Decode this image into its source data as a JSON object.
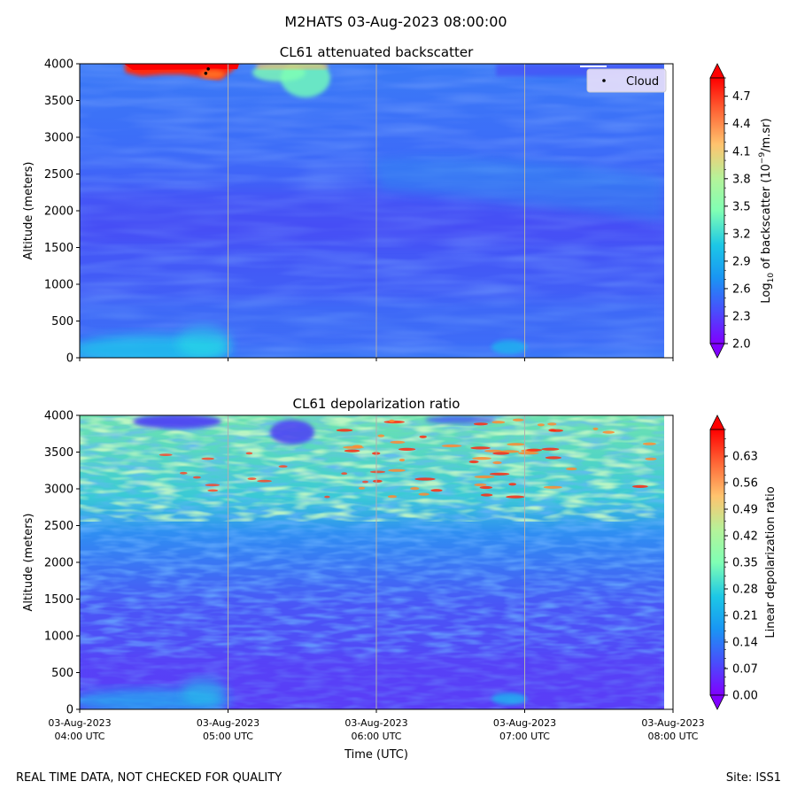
{
  "figure": {
    "title": "M2HATS 03-Aug-2023 08:00:00",
    "footer_left": "REAL TIME DATA, NOT CHECKED FOR QUALITY",
    "footer_right": "Site: ISS1"
  },
  "chart_data": [
    {
      "type": "heatmap",
      "title": "CL61 attenuated backscatter",
      "ylabel": "Altitude (meters)",
      "xlabel": "",
      "ylim": [
        0,
        4000
      ],
      "yticks": [
        "0",
        "500",
        "1000",
        "1500",
        "2000",
        "2500",
        "3000",
        "3500",
        "4000"
      ],
      "x_range": [
        "03-Aug-2023 04:00 UTC",
        "03-Aug-2023 08:00 UTC"
      ],
      "vertical_gridlines": true,
      "legend": {
        "placement": "top-right",
        "entries": [
          "Cloud"
        ]
      },
      "colorbar": {
        "label_prefix": "Log",
        "label_sub": "10",
        "label_mid": " of backscatter (10",
        "label_sup": "−9",
        "label_suffix": "/m.sr)",
        "ticks": [
          "2.0",
          "2.3",
          "2.6",
          "2.9",
          "3.2",
          "3.5",
          "3.8",
          "4.1",
          "4.4",
          "4.7"
        ],
        "range": [
          2.0,
          4.9
        ],
        "colormap": "rainbow",
        "extend": "both"
      },
      "cloud_points": [
        {
          "time": "04:51",
          "altitude": 3870
        },
        {
          "time": "04:52",
          "altitude": 3930
        }
      ],
      "features": [
        {
          "description": "strong backscatter (red)",
          "time_start": "04:30",
          "time_end": "05:30",
          "altitude_min": 3700,
          "altitude_max": 4000
        },
        {
          "description": "elevated backscatter (green)",
          "time_start": "05:15",
          "time_end": "05:45",
          "altitude_min": 3550,
          "altitude_max": 4000
        },
        {
          "description": "near-surface layer (light blue)",
          "time_start": "04:00",
          "time_end": "05:05",
          "altitude_min": 0,
          "altitude_max": 250
        }
      ]
    },
    {
      "type": "heatmap",
      "title": "CL61 depolarization ratio",
      "ylabel": "Altitude (meters)",
      "xlabel": "Time (UTC)",
      "ylim": [
        0,
        4000
      ],
      "yticks": [
        "0",
        "500",
        "1000",
        "1500",
        "2000",
        "2500",
        "3000",
        "3500",
        "4000"
      ],
      "xticks": [
        {
          "date": "03-Aug-2023",
          "time": "04:00 UTC"
        },
        {
          "date": "03-Aug-2023",
          "time": "05:00 UTC"
        },
        {
          "date": "03-Aug-2023",
          "time": "06:00 UTC"
        },
        {
          "date": "03-Aug-2023",
          "time": "07:00 UTC"
        },
        {
          "date": "03-Aug-2023",
          "time": "08:00 UTC"
        }
      ],
      "vertical_gridlines": true,
      "colorbar": {
        "label": "Linear depolarization ratio",
        "ticks": [
          "0.00",
          "0.07",
          "0.14",
          "0.21",
          "0.28",
          "0.35",
          "0.42",
          "0.49",
          "0.56",
          "0.63"
        ],
        "range": [
          0.0,
          0.7
        ],
        "colormap": "rainbow",
        "extend": "both"
      },
      "features": [
        {
          "description": "mixed high depolarization (green/yellow)",
          "altitude_min": 2700,
          "altitude_max": 4000
        },
        {
          "description": "low depolarization (blue)",
          "altitude_min": 0,
          "altitude_max": 2700
        }
      ]
    }
  ]
}
